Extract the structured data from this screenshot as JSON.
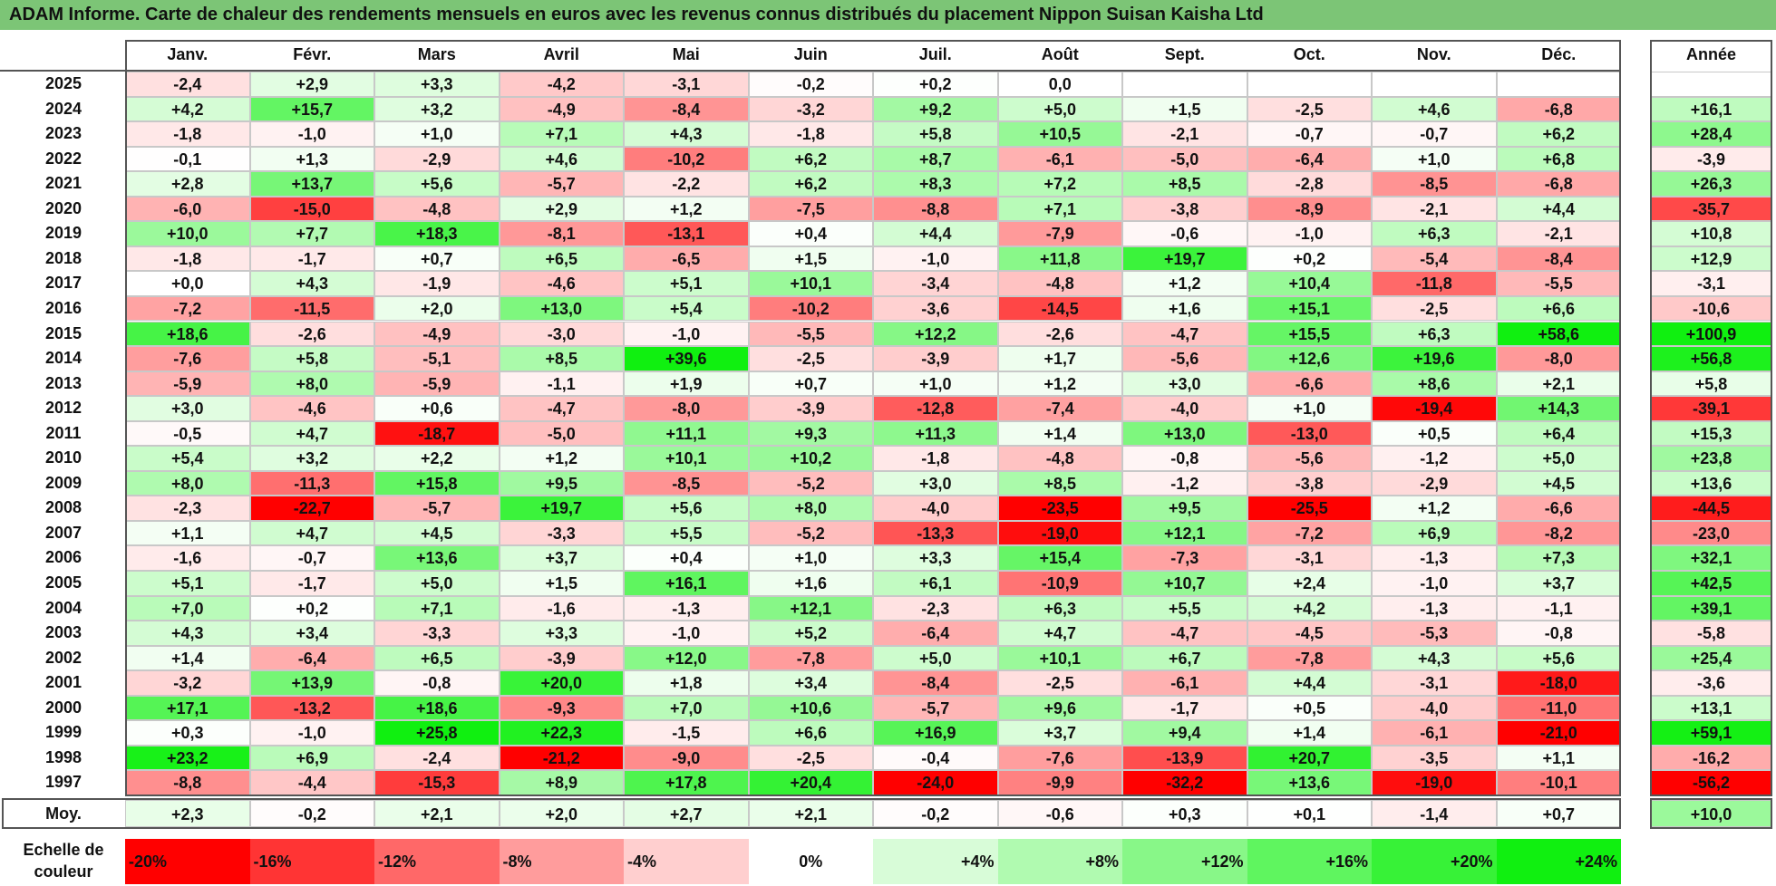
{
  "title": "ADAM Informe. Carte de chaleur des rendements mensuels en euros avec les revenus connus distribués du placement Nippon Suisan Kaisha Ltd",
  "chart_data": {
    "type": "heatmap",
    "columns": [
      "Janv.",
      "Févr.",
      "Mars",
      "Avril",
      "Mai",
      "Juin",
      "Juil.",
      "Août",
      "Sept.",
      "Oct.",
      "Nov.",
      "Déc."
    ],
    "year_column_label": "Année",
    "rows": [
      {
        "year": "2025",
        "months": [
          "-2,4",
          "+2,9",
          "+3,3",
          "-4,2",
          "-3,1",
          "-0,2",
          "+0,2",
          "0,0",
          "",
          "",
          "",
          ""
        ],
        "annual": ""
      },
      {
        "year": "2024",
        "months": [
          "+4,2",
          "+15,7",
          "+3,2",
          "-4,9",
          "-8,4",
          "-3,2",
          "+9,2",
          "+5,0",
          "+1,5",
          "-2,5",
          "+4,6",
          "-6,8"
        ],
        "annual": "+16,1"
      },
      {
        "year": "2023",
        "months": [
          "-1,8",
          "-1,0",
          "+1,0",
          "+7,1",
          "+4,3",
          "-1,8",
          "+5,8",
          "+10,5",
          "-2,1",
          "-0,7",
          "-0,7",
          "+6,2"
        ],
        "annual": "+28,4"
      },
      {
        "year": "2022",
        "months": [
          "-0,1",
          "+1,3",
          "-2,9",
          "+4,6",
          "-10,2",
          "+6,2",
          "+8,7",
          "-6,1",
          "-5,0",
          "-6,4",
          "+1,0",
          "+6,8"
        ],
        "annual": "-3,9"
      },
      {
        "year": "2021",
        "months": [
          "+2,8",
          "+13,7",
          "+5,6",
          "-5,7",
          "-2,2",
          "+6,2",
          "+8,3",
          "+7,2",
          "+8,5",
          "-2,8",
          "-8,5",
          "-6,8"
        ],
        "annual": "+26,3"
      },
      {
        "year": "2020",
        "months": [
          "-6,0",
          "-15,0",
          "-4,8",
          "+2,9",
          "+1,2",
          "-7,5",
          "-8,8",
          "+7,1",
          "-3,8",
          "-8,9",
          "-2,1",
          "+4,4"
        ],
        "annual": "-35,7"
      },
      {
        "year": "2019",
        "months": [
          "+10,0",
          "+7,7",
          "+18,3",
          "-8,1",
          "-13,1",
          "+0,4",
          "+4,4",
          "-7,9",
          "-0,6",
          "-1,0",
          "+6,3",
          "-2,1"
        ],
        "annual": "+10,8"
      },
      {
        "year": "2018",
        "months": [
          "-1,8",
          "-1,7",
          "+0,7",
          "+6,5",
          "-6,5",
          "+1,5",
          "-1,0",
          "+11,8",
          "+19,7",
          "+0,2",
          "-5,4",
          "-8,4"
        ],
        "annual": "+12,9"
      },
      {
        "year": "2017",
        "months": [
          "+0,0",
          "+4,3",
          "-1,9",
          "-4,6",
          "+5,1",
          "+10,1",
          "-3,4",
          "-4,8",
          "+1,2",
          "+10,4",
          "-11,8",
          "-5,5"
        ],
        "annual": "-3,1"
      },
      {
        "year": "2016",
        "months": [
          "-7,2",
          "-11,5",
          "+2,0",
          "+13,0",
          "+5,4",
          "-10,2",
          "-3,6",
          "-14,5",
          "+1,6",
          "+15,1",
          "-2,5",
          "+6,6"
        ],
        "annual": "-10,6"
      },
      {
        "year": "2015",
        "months": [
          "+18,6",
          "-2,6",
          "-4,9",
          "-3,0",
          "-1,0",
          "-5,5",
          "+12,2",
          "-2,6",
          "-4,7",
          "+15,5",
          "+6,3",
          "+58,6"
        ],
        "annual": "+100,9"
      },
      {
        "year": "2014",
        "months": [
          "-7,6",
          "+5,8",
          "-5,1",
          "+8,5",
          "+39,6",
          "-2,5",
          "-3,9",
          "+1,7",
          "-5,6",
          "+12,6",
          "+19,6",
          "-8,0"
        ],
        "annual": "+56,8"
      },
      {
        "year": "2013",
        "months": [
          "-5,9",
          "+8,0",
          "-5,9",
          "-1,1",
          "+1,9",
          "+0,7",
          "+1,0",
          "+1,2",
          "+3,0",
          "-6,6",
          "+8,6",
          "+2,1"
        ],
        "annual": "+5,8"
      },
      {
        "year": "2012",
        "months": [
          "+3,0",
          "-4,6",
          "+0,6",
          "-4,7",
          "-8,0",
          "-3,9",
          "-12,8",
          "-7,4",
          "-4,0",
          "+1,0",
          "-19,4",
          "+14,3"
        ],
        "annual": "-39,1"
      },
      {
        "year": "2011",
        "months": [
          "-0,5",
          "+4,7",
          "-18,7",
          "-5,0",
          "+11,1",
          "+9,3",
          "+11,3",
          "+1,4",
          "+13,0",
          "-13,0",
          "+0,5",
          "+6,4"
        ],
        "annual": "+15,3"
      },
      {
        "year": "2010",
        "months": [
          "+5,4",
          "+3,2",
          "+2,2",
          "+1,2",
          "+10,1",
          "+10,2",
          "-1,8",
          "-4,8",
          "-0,8",
          "-5,6",
          "-1,2",
          "+5,0"
        ],
        "annual": "+23,8"
      },
      {
        "year": "2009",
        "months": [
          "+8,0",
          "-11,3",
          "+15,8",
          "+9,5",
          "-8,5",
          "-5,2",
          "+3,0",
          "+8,5",
          "-1,2",
          "-3,8",
          "-2,9",
          "+4,5"
        ],
        "annual": "+13,6"
      },
      {
        "year": "2008",
        "months": [
          "-2,3",
          "-22,7",
          "-5,7",
          "+19,7",
          "+5,6",
          "+8,0",
          "-4,0",
          "-23,5",
          "+9,5",
          "-25,5",
          "+1,2",
          "-6,6"
        ],
        "annual": "-44,5"
      },
      {
        "year": "2007",
        "months": [
          "+1,1",
          "+4,7",
          "+4,5",
          "-3,3",
          "+5,5",
          "-5,2",
          "-13,3",
          "-19,0",
          "+12,1",
          "-7,2",
          "+6,9",
          "-8,2"
        ],
        "annual": "-23,0"
      },
      {
        "year": "2006",
        "months": [
          "-1,6",
          "-0,7",
          "+13,6",
          "+3,7",
          "+0,4",
          "+1,0",
          "+3,3",
          "+15,4",
          "-7,3",
          "-3,1",
          "-1,3",
          "+7,3"
        ],
        "annual": "+32,1"
      },
      {
        "year": "2005",
        "months": [
          "+5,1",
          "-1,7",
          "+5,0",
          "+1,5",
          "+16,1",
          "+1,6",
          "+6,1",
          "-10,9",
          "+10,7",
          "+2,4",
          "-1,0",
          "+3,7"
        ],
        "annual": "+42,5"
      },
      {
        "year": "2004",
        "months": [
          "+7,0",
          "+0,2",
          "+7,1",
          "-1,6",
          "-1,3",
          "+12,1",
          "-2,3",
          "+6,3",
          "+5,5",
          "+4,2",
          "-1,3",
          "-1,1"
        ],
        "annual": "+39,1"
      },
      {
        "year": "2003",
        "months": [
          "+4,3",
          "+3,4",
          "-3,3",
          "+3,3",
          "-1,0",
          "+5,2",
          "-6,4",
          "+4,7",
          "-4,7",
          "-4,5",
          "-5,3",
          "-0,8"
        ],
        "annual": "-5,8"
      },
      {
        "year": "2002",
        "months": [
          "+1,4",
          "-6,4",
          "+6,5",
          "-3,9",
          "+12,0",
          "-7,8",
          "+5,0",
          "+10,1",
          "+6,7",
          "-7,8",
          "+4,3",
          "+5,6"
        ],
        "annual": "+25,4"
      },
      {
        "year": "2001",
        "months": [
          "-3,2",
          "+13,9",
          "-0,8",
          "+20,0",
          "+1,8",
          "+3,4",
          "-8,4",
          "-2,5",
          "-6,1",
          "+4,4",
          "-3,1",
          "-18,0"
        ],
        "annual": "-3,6"
      },
      {
        "year": "2000",
        "months": [
          "+17,1",
          "-13,2",
          "+18,6",
          "-9,3",
          "+7,0",
          "+10,6",
          "-5,7",
          "+9,6",
          "-1,7",
          "+0,5",
          "-4,0",
          "-11,0"
        ],
        "annual": "+13,1"
      },
      {
        "year": "1999",
        "months": [
          "+0,3",
          "-1,0",
          "+25,8",
          "+22,3",
          "-1,5",
          "+6,6",
          "+16,9",
          "+3,7",
          "+9,4",
          "+1,4",
          "-6,1",
          "-21,0"
        ],
        "annual": "+59,1"
      },
      {
        "year": "1998",
        "months": [
          "+23,2",
          "+6,9",
          "-2,4",
          "-21,2",
          "-9,0",
          "-2,5",
          "-0,4",
          "-7,6",
          "-13,9",
          "+20,7",
          "-3,5",
          "+1,1"
        ],
        "annual": "-16,2"
      },
      {
        "year": "1997",
        "months": [
          "-8,8",
          "-4,4",
          "-15,3",
          "+8,9",
          "+17,8",
          "+20,4",
          "-24,0",
          "-9,9",
          "-32,2",
          "+13,6",
          "-19,0",
          "-10,1"
        ],
        "annual": "-56,2"
      }
    ],
    "average": {
      "label": "Moy.",
      "months": [
        "+2,3",
        "-0,2",
        "+2,1",
        "+2,0",
        "+2,7",
        "+2,1",
        "-0,2",
        "-0,6",
        "+0,3",
        "+0,1",
        "-1,4",
        "+0,7"
      ],
      "annual": "+10,0"
    },
    "color_scale": {
      "label": "Echelle de couleur",
      "steps": [
        {
          "label": "-20%",
          "color": "#ff0000"
        },
        {
          "label": "-16%",
          "color": "#ff3434"
        },
        {
          "label": "-12%",
          "color": "#ff6868"
        },
        {
          "label": "-8%",
          "color": "#ff9c9c"
        },
        {
          "label": "-4%",
          "color": "#ffcfcf"
        },
        {
          "label": "0%",
          "color": "#ffffff"
        },
        {
          "label": "+4%",
          "color": "#d8fcd8"
        },
        {
          "label": "+8%",
          "color": "#b0fab0"
        },
        {
          "label": "+12%",
          "color": "#88f788"
        },
        {
          "label": "+16%",
          "color": "#5ff55f"
        },
        {
          "label": "+20%",
          "color": "#37f237"
        },
        {
          "label": "+24%",
          "color": "#10f010"
        }
      ]
    }
  },
  "colors": {
    "title_bar": "#7cc576",
    "grid_line": "#c8c8c8",
    "frame": "#555555"
  }
}
